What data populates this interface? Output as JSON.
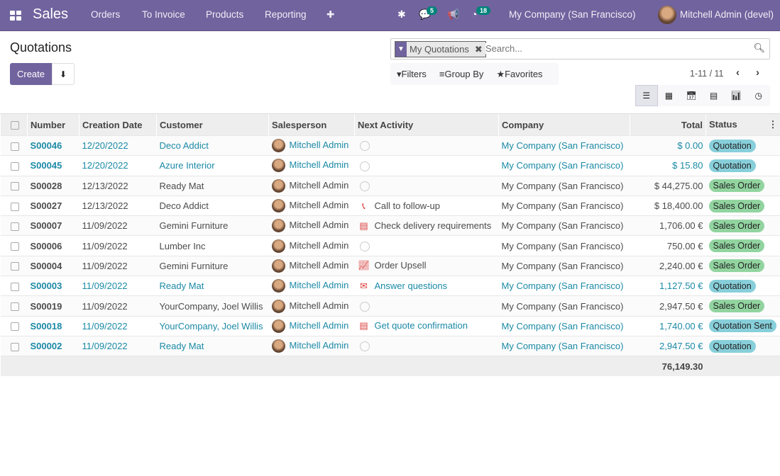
{
  "topbar": {
    "app": "Sales",
    "menu": [
      "Orders",
      "To Invoice",
      "Products",
      "Reporting"
    ],
    "plus": "✚",
    "messages_count": "5",
    "activities_count": "18",
    "company": "My Company (San Francisco)",
    "user": "Mitchell Admin (devel)"
  },
  "page": {
    "title": "Quotations",
    "create_label": "Create"
  },
  "search": {
    "facet": "My Quotations",
    "placeholder": "Search...",
    "filters": "Filters",
    "group_by": "Group By",
    "favorites": "Favorites"
  },
  "pager": {
    "text": "1-11 / 11"
  },
  "colors": {
    "brand": "#71639e",
    "link": "#1b8aa6",
    "quotation": "#87cfda",
    "sales_order": "#92d4a0"
  },
  "table": {
    "headers": [
      "Number",
      "Creation Date",
      "Customer",
      "Salesperson",
      "Next Activity",
      "Company",
      "Total",
      "Status"
    ],
    "rows": [
      {
        "number": "S00046",
        "date": "12/20/2022",
        "customer": "Deco Addict",
        "salesperson": "Mitchell Admin",
        "activity_icon": "",
        "activity": "",
        "company": "My Company (San Francisco)",
        "total": "$ 0.00",
        "status": "Quotation",
        "link": true
      },
      {
        "number": "S00045",
        "date": "12/20/2022",
        "customer": "Azure Interior",
        "salesperson": "Mitchell Admin",
        "activity_icon": "",
        "activity": "",
        "company": "My Company (San Francisco)",
        "total": "$ 15.80",
        "status": "Quotation",
        "link": true
      },
      {
        "number": "S00028",
        "date": "12/13/2022",
        "customer": "Ready Mat",
        "salesperson": "Mitchell Admin",
        "activity_icon": "",
        "activity": "",
        "company": "My Company (San Francisco)",
        "total": "$ 44,275.00",
        "status": "Sales Order",
        "link": false
      },
      {
        "number": "S00027",
        "date": "12/13/2022",
        "customer": "Deco Addict",
        "salesperson": "Mitchell Admin",
        "activity_icon": "phone",
        "activity": "Call to follow-up",
        "company": "My Company (San Francisco)",
        "total": "$ 18,400.00",
        "status": "Sales Order",
        "link": false
      },
      {
        "number": "S00007",
        "date": "11/09/2022",
        "customer": "Gemini Furniture",
        "salesperson": "Mitchell Admin",
        "activity_icon": "tasks",
        "activity": "Check delivery requirements",
        "company": "My Company (San Francisco)",
        "total": "1,706.00 €",
        "status": "Sales Order",
        "link": false
      },
      {
        "number": "S00006",
        "date": "11/09/2022",
        "customer": "Lumber Inc",
        "salesperson": "Mitchell Admin",
        "activity_icon": "",
        "activity": "",
        "company": "My Company (San Francisco)",
        "total": "750.00 €",
        "status": "Sales Order",
        "link": false
      },
      {
        "number": "S00004",
        "date": "11/09/2022",
        "customer": "Gemini Furniture",
        "salesperson": "Mitchell Admin",
        "activity_icon": "chart",
        "activity": "Order Upsell",
        "company": "My Company (San Francisco)",
        "total": "2,240.00 €",
        "status": "Sales Order",
        "link": false
      },
      {
        "number": "S00003",
        "date": "11/09/2022",
        "customer": "Ready Mat",
        "salesperson": "Mitchell Admin",
        "activity_icon": "envelope",
        "activity": "Answer questions",
        "company": "My Company (San Francisco)",
        "total": "1,127.50 €",
        "status": "Quotation",
        "link": true
      },
      {
        "number": "S00019",
        "date": "11/09/2022",
        "customer": "YourCompany, Joel Willis",
        "salesperson": "Mitchell Admin",
        "activity_icon": "",
        "activity": "",
        "company": "My Company (San Francisco)",
        "total": "2,947.50 €",
        "status": "Sales Order",
        "link": false
      },
      {
        "number": "S00018",
        "date": "11/09/2022",
        "customer": "YourCompany, Joel Willis",
        "salesperson": "Mitchell Admin",
        "activity_icon": "tasks",
        "activity": "Get quote confirmation",
        "company": "My Company (San Francisco)",
        "total": "1,740.00 €",
        "status": "Quotation Sent",
        "link": true
      },
      {
        "number": "S00002",
        "date": "11/09/2022",
        "customer": "Ready Mat",
        "salesperson": "Mitchell Admin",
        "activity_icon": "",
        "activity": "",
        "company": "My Company (San Francisco)",
        "total": "2,947.50 €",
        "status": "Quotation",
        "link": true
      }
    ],
    "sum_total": "76,149.30"
  }
}
